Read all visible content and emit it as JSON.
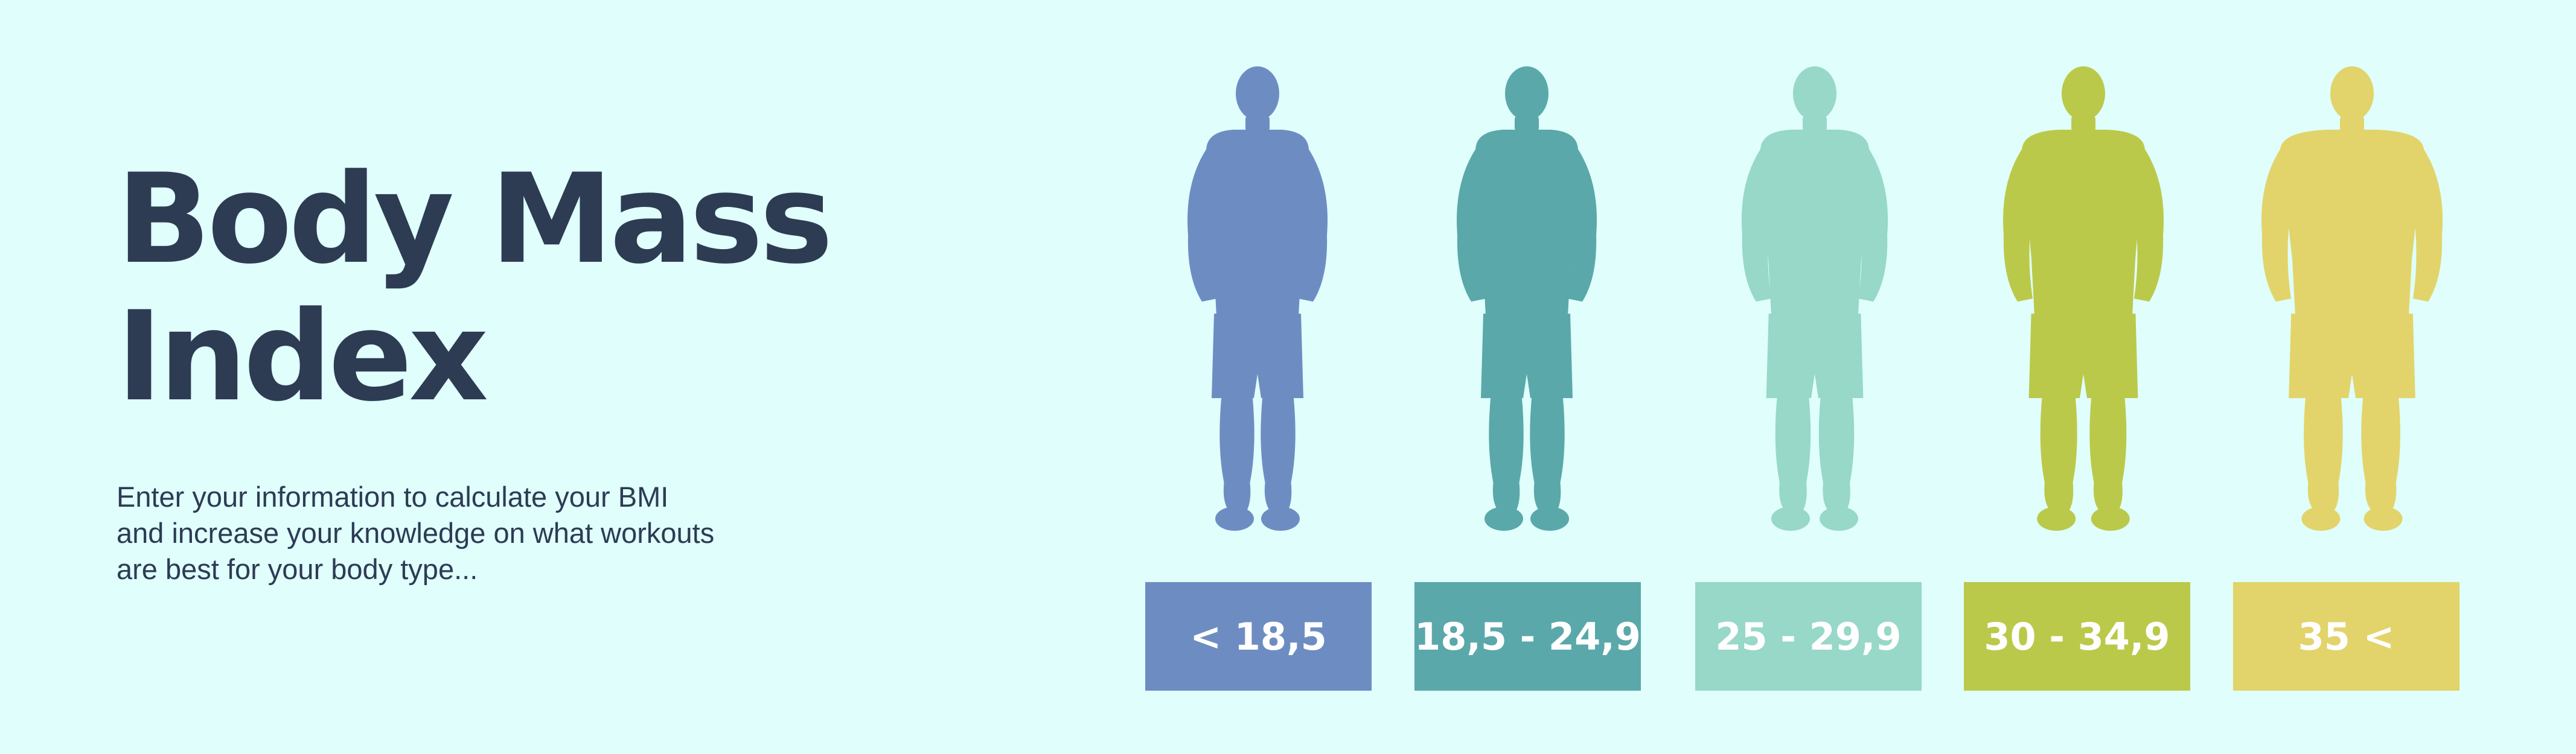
{
  "header": {
    "title_line1": "Body Mass",
    "title_line2": "Index",
    "description_lines": [
      "Enter your information to calculate your BMI",
      "and increase your knowledge on what workouts",
      "are best for your body type..."
    ]
  },
  "categories": [
    {
      "label": "< 18,5",
      "color": "#6d8dc2",
      "figure_icon": "body-silhouette-icon"
    },
    {
      "label": "18,5 - 24,9",
      "color": "#5aa8aa",
      "figure_icon": "body-silhouette-icon"
    },
    {
      "label": "25 - 29,9",
      "color": "#97d8c8",
      "figure_icon": "body-silhouette-icon"
    },
    {
      "label": "30 - 34,9",
      "color": "#bbc94a",
      "figure_icon": "body-silhouette-icon"
    },
    {
      "label": "35 <",
      "color": "#e2d46a",
      "figure_icon": "body-silhouette-icon"
    }
  ]
}
